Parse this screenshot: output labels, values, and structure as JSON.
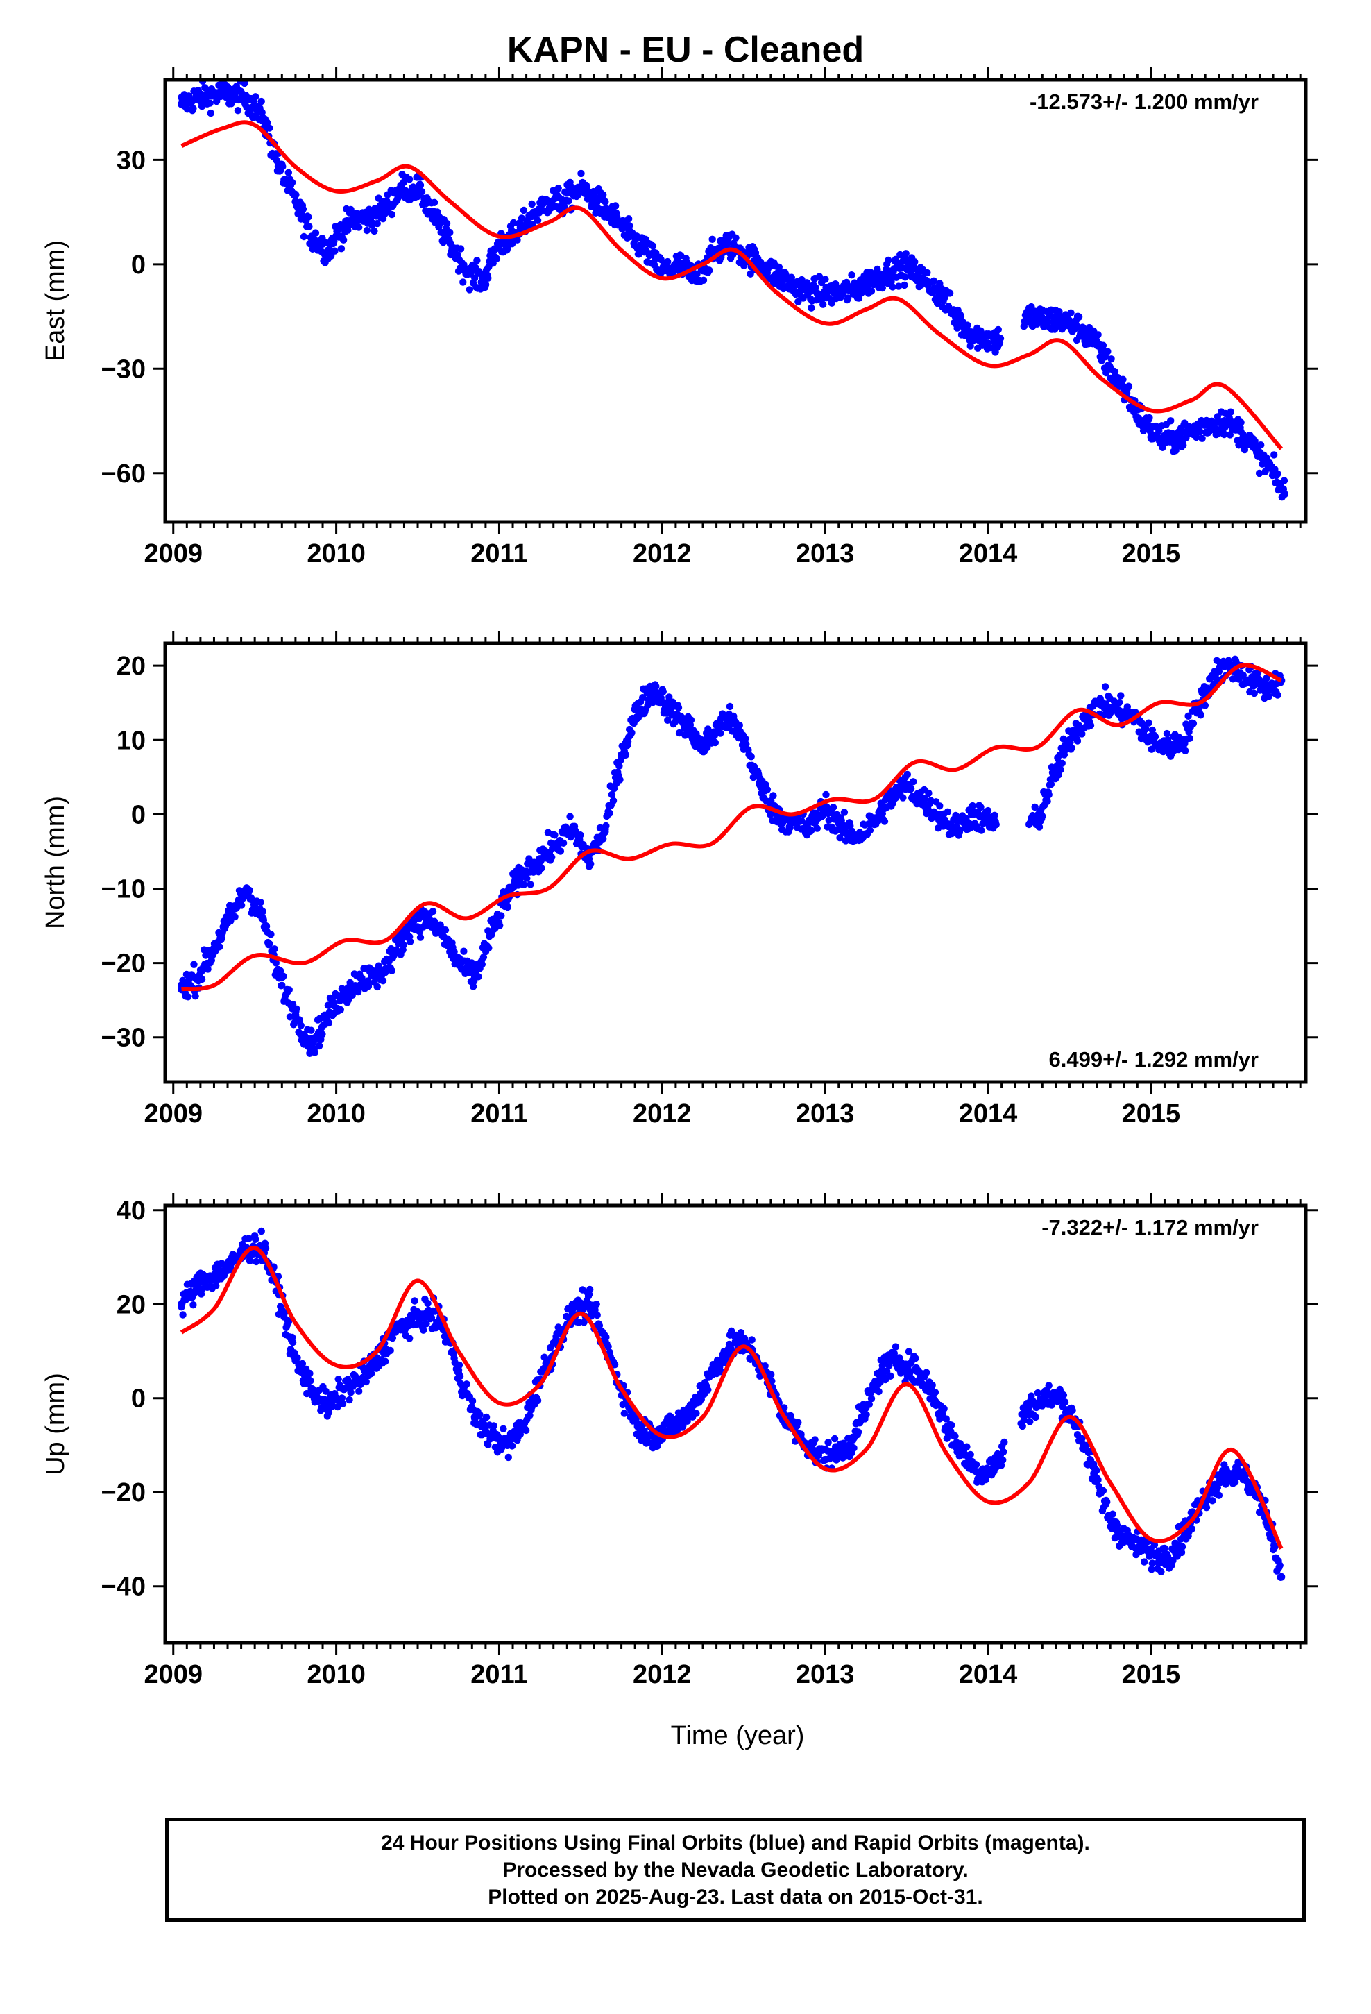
{
  "title": "KAPN  - EU - Cleaned",
  "xlabel": "Time (year)",
  "footer": [
    "24 Hour Positions Using Final Orbits (blue) and Rapid Orbits (magenta).",
    "Processed by the Nevada Geodetic Laboratory.",
    "Plotted on 2025-Aug-23. Last data on 2015-Oct-31."
  ],
  "colors": {
    "observed": "#0000ff",
    "model": "#ff0000",
    "axes": "#000000"
  },
  "chart_data": [
    {
      "type": "scatter",
      "ylabel": "East (mm)",
      "rate": "-12.573+/- 1.200 mm/yr",
      "rate_position": "top-right",
      "xlim": [
        2008.95,
        2015.95
      ],
      "ylim": [
        -74,
        53
      ],
      "xticks": [
        2009,
        2010,
        2011,
        2012,
        2013,
        2014,
        2015
      ],
      "yticks": [
        30,
        0,
        -30,
        -60
      ],
      "ytick_labels": [
        "30",
        "0",
        "−30",
        "−60"
      ],
      "series": [
        {
          "kind": "points",
          "x": [
            2009.05,
            2009.15,
            2009.3,
            2009.45,
            2009.55,
            2009.65,
            2009.75,
            2009.85,
            2009.95,
            2010.0,
            2010.1,
            2010.2,
            2010.3,
            2010.4,
            2010.5,
            2010.6,
            2010.7,
            2010.8,
            2010.9,
            2011.0,
            2011.1,
            2011.2,
            2011.3,
            2011.4,
            2011.5,
            2011.6,
            2011.7,
            2011.8,
            2011.9,
            2012.0,
            2012.1,
            2012.2,
            2012.3,
            2012.4,
            2012.5,
            2012.6,
            2012.7,
            2012.8,
            2012.9,
            2013.0,
            2013.1,
            2013.2,
            2013.3,
            2013.4,
            2013.5,
            2013.6,
            2013.7,
            2013.8,
            2013.9,
            2014.05,
            2014.25,
            2014.35,
            2014.45,
            2014.55,
            2014.65,
            2014.75,
            2014.85,
            2014.95,
            2015.05,
            2015.15,
            2015.25,
            2015.35,
            2015.45,
            2015.55,
            2015.65,
            2015.75,
            2015.82
          ],
          "y": [
            46,
            48,
            49,
            48,
            42,
            28,
            18,
            8,
            4,
            8,
            13,
            13,
            16,
            22,
            22,
            14,
            6,
            -2,
            -5,
            6,
            8,
            14,
            18,
            18,
            22,
            18,
            14,
            8,
            4,
            -2,
            0,
            -4,
            2,
            6,
            3,
            0,
            -3,
            -6,
            -8,
            -8,
            -8,
            -7,
            -4,
            -2,
            -1,
            -4,
            -8,
            -15,
            -20,
            -22,
            -15,
            -16,
            -16,
            -18,
            -22,
            -30,
            -37,
            -45,
            -50,
            -50,
            -48,
            -46,
            -45,
            -48,
            -54,
            -60,
            -66
          ]
        },
        {
          "kind": "line",
          "x": [
            2009.05,
            2009.3,
            2009.5,
            2009.75,
            2010.0,
            2010.25,
            2010.45,
            2010.7,
            2011.0,
            2011.3,
            2011.5,
            2011.75,
            2012.0,
            2012.25,
            2012.45,
            2012.7,
            2013.0,
            2013.25,
            2013.45,
            2013.7,
            2014.0,
            2014.25,
            2014.45,
            2014.7,
            2015.0,
            2015.25,
            2015.45,
            2015.8
          ],
          "y": [
            34,
            39,
            40,
            28,
            21,
            24,
            28,
            18,
            8,
            12,
            16,
            4,
            -4,
            0,
            4,
            -8,
            -17,
            -13,
            -10,
            -20,
            -29,
            -26,
            -22,
            -33,
            -42,
            -39,
            -35,
            -53
          ]
        }
      ]
    },
    {
      "type": "scatter",
      "ylabel": "North (mm)",
      "rate": "6.499+/- 1.292 mm/yr",
      "rate_position": "bottom-right",
      "xlim": [
        2008.95,
        2015.95
      ],
      "ylim": [
        -36,
        23
      ],
      "xticks": [
        2009,
        2010,
        2011,
        2012,
        2013,
        2014,
        2015
      ],
      "yticks": [
        20,
        10,
        0,
        -10,
        -20,
        -30
      ],
      "ytick_labels": [
        "20",
        "10",
        "0",
        "−10",
        "−20",
        "−30"
      ],
      "series": [
        {
          "kind": "points",
          "x": [
            2009.05,
            2009.15,
            2009.25,
            2009.35,
            2009.45,
            2009.55,
            2009.65,
            2009.75,
            2009.85,
            2009.95,
            2010.05,
            2010.15,
            2010.25,
            2010.35,
            2010.45,
            2010.55,
            2010.65,
            2010.75,
            2010.85,
            2010.95,
            2011.05,
            2011.15,
            2011.25,
            2011.35,
            2011.45,
            2011.55,
            2011.65,
            2011.75,
            2011.85,
            2011.95,
            2012.05,
            2012.15,
            2012.25,
            2012.4,
            2012.5,
            2012.6,
            2012.7,
            2012.8,
            2012.9,
            2013.0,
            2013.1,
            2013.2,
            2013.3,
            2013.4,
            2013.5,
            2013.6,
            2013.7,
            2013.8,
            2013.9,
            2014.0,
            2014.3,
            2014.4,
            2014.5,
            2014.6,
            2014.7,
            2014.8,
            2014.9,
            2015.0,
            2015.1,
            2015.2,
            2015.3,
            2015.4,
            2015.5,
            2015.6,
            2015.7,
            2015.8
          ],
          "y": [
            -23,
            -22,
            -18,
            -14,
            -10,
            -14,
            -22,
            -27,
            -31,
            -27,
            -24,
            -22,
            -22,
            -19,
            -15,
            -14,
            -16,
            -20,
            -22,
            -16,
            -11,
            -8,
            -6,
            -4,
            -2,
            -6,
            -2,
            8,
            14,
            17,
            14,
            12,
            9,
            13,
            10,
            4,
            0,
            -1,
            -2,
            1,
            -2,
            -3,
            -1,
            2,
            4,
            2,
            0,
            -2,
            0,
            -1,
            -1,
            5,
            10,
            13,
            15,
            14,
            13,
            10,
            9,
            10,
            15,
            19,
            20,
            18,
            17,
            18
          ]
        },
        {
          "kind": "line",
          "x": [
            2009.05,
            2009.25,
            2009.5,
            2009.8,
            2010.05,
            2010.3,
            2010.55,
            2010.8,
            2011.05,
            2011.3,
            2011.55,
            2011.8,
            2012.05,
            2012.3,
            2012.55,
            2012.8,
            2013.05,
            2013.3,
            2013.55,
            2013.8,
            2014.05,
            2014.3,
            2014.55,
            2014.8,
            2015.05,
            2015.3,
            2015.55,
            2015.8
          ],
          "y": [
            -23.5,
            -23,
            -19,
            -20,
            -17,
            -17,
            -12,
            -14,
            -11,
            -10,
            -5,
            -6,
            -4,
            -4,
            1,
            0,
            2,
            2,
            7,
            6,
            9,
            9,
            14,
            12,
            15,
            15,
            20,
            18
          ]
        }
      ]
    },
    {
      "type": "scatter",
      "ylabel": "Up (mm)",
      "rate": "-7.322+/- 1.172 mm/yr",
      "rate_position": "top-right",
      "xlim": [
        2008.95,
        2015.95
      ],
      "ylim": [
        -52,
        41
      ],
      "xticks": [
        2009,
        2010,
        2011,
        2012,
        2013,
        2014,
        2015
      ],
      "yticks": [
        40,
        20,
        0,
        -20,
        -40
      ],
      "ytick_labels": [
        "40",
        "20",
        "0",
        "−20",
        "−40"
      ],
      "series": [
        {
          "kind": "points",
          "x": [
            2009.05,
            2009.15,
            2009.25,
            2009.35,
            2009.45,
            2009.55,
            2009.65,
            2009.75,
            2009.85,
            2009.95,
            2010.05,
            2010.15,
            2010.25,
            2010.35,
            2010.45,
            2010.55,
            2010.65,
            2010.75,
            2010.85,
            2010.95,
            2011.05,
            2011.15,
            2011.25,
            2011.35,
            2011.45,
            2011.55,
            2011.65,
            2011.75,
            2011.85,
            2011.95,
            2012.05,
            2012.15,
            2012.25,
            2012.35,
            2012.45,
            2012.55,
            2012.65,
            2012.75,
            2012.85,
            2012.95,
            2013.05,
            2013.15,
            2013.25,
            2013.35,
            2013.45,
            2013.55,
            2013.65,
            2013.75,
            2013.85,
            2013.95,
            2014.05,
            2014.25,
            2014.35,
            2014.45,
            2014.55,
            2014.65,
            2014.75,
            2014.85,
            2014.95,
            2015.05,
            2015.15,
            2015.25,
            2015.35,
            2015.45,
            2015.55,
            2015.65,
            2015.75,
            2015.8
          ],
          "y": [
            20,
            24,
            26,
            28,
            32,
            32,
            22,
            8,
            2,
            -2,
            2,
            4,
            8,
            14,
            16,
            18,
            16,
            6,
            -4,
            -8,
            -10,
            -6,
            4,
            12,
            18,
            20,
            12,
            2,
            -6,
            -8,
            -6,
            -4,
            2,
            8,
            12,
            10,
            4,
            -4,
            -8,
            -12,
            -12,
            -10,
            -2,
            6,
            8,
            6,
            2,
            -6,
            -12,
            -16,
            -14,
            -2,
            0,
            0,
            -6,
            -16,
            -26,
            -30,
            -32,
            -34,
            -32,
            -26,
            -20,
            -16,
            -16,
            -20,
            -30,
            -38
          ]
        },
        {
          "kind": "line",
          "x": [
            2009.05,
            2009.25,
            2009.5,
            2009.75,
            2010.0,
            2010.25,
            2010.5,
            2010.75,
            2011.0,
            2011.25,
            2011.5,
            2011.75,
            2012.0,
            2012.25,
            2012.5,
            2012.75,
            2013.0,
            2013.25,
            2013.5,
            2013.75,
            2014.0,
            2014.25,
            2014.5,
            2014.75,
            2015.0,
            2015.25,
            2015.5,
            2015.8
          ],
          "y": [
            14,
            19,
            32,
            16,
            7,
            10,
            25,
            10,
            -1,
            3,
            18,
            2,
            -8,
            -4,
            11,
            -4,
            -15,
            -11,
            3,
            -12,
            -22,
            -18,
            -4,
            -18,
            -30,
            -26,
            -11,
            -32
          ]
        }
      ]
    }
  ]
}
